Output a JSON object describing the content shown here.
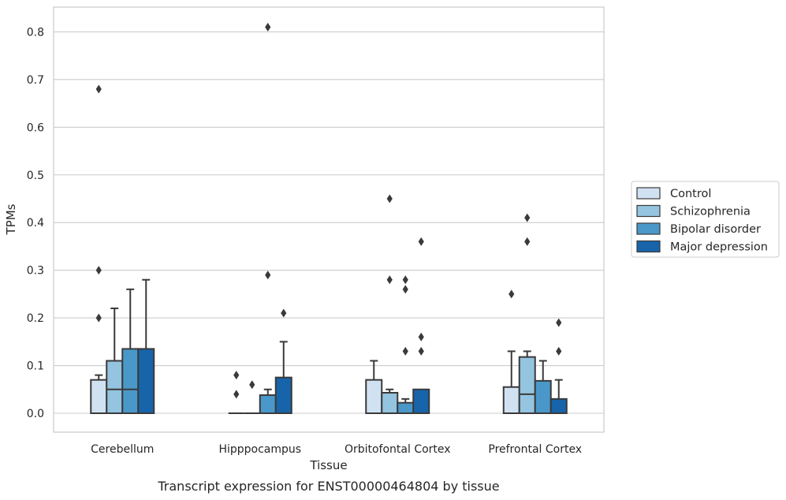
{
  "chart_data": {
    "type": "boxplot",
    "title": "",
    "caption": "Transcript expression for ENST00000464804 by tissue",
    "xlabel": "Tissue",
    "ylabel": "TPMs",
    "ylim": [
      -0.04,
      0.855
    ],
    "yticks": [
      0.0,
      0.1,
      0.2,
      0.3,
      0.4,
      0.5,
      0.6,
      0.7,
      0.8
    ],
    "ytick_labels": [
      "0.0",
      "0.1",
      "0.2",
      "0.3",
      "0.4",
      "0.5",
      "0.6",
      "0.7",
      "0.8"
    ],
    "grid": "horizontal",
    "legend_position": "right",
    "categories": [
      "Cerebellum",
      "Hipppocampus",
      "Orbitofontal Cortex",
      "Prefrontal Cortex"
    ],
    "series": [
      {
        "name": "Control",
        "color": "#d0e1f2",
        "boxes": [
          {
            "q1": 0.0,
            "median": 0.0,
            "q3": 0.07,
            "whislo": 0.0,
            "whishi": 0.08,
            "fliers": [
              0.68,
              0.3,
              0.2
            ]
          },
          {
            "q1": 0.0,
            "median": 0.0,
            "q3": 0.0,
            "whislo": 0.0,
            "whishi": 0.0,
            "fliers": [
              0.08,
              0.04
            ]
          },
          {
            "q1": 0.0,
            "median": 0.0,
            "q3": 0.07,
            "whislo": 0.0,
            "whishi": 0.11,
            "fliers": []
          },
          {
            "q1": 0.0,
            "median": 0.0,
            "q3": 0.055,
            "whislo": 0.0,
            "whishi": 0.13,
            "fliers": [
              0.25
            ]
          }
        ]
      },
      {
        "name": "Schizophrenia",
        "color": "#94c4df",
        "boxes": [
          {
            "q1": 0.0,
            "median": 0.05,
            "q3": 0.11,
            "whislo": 0.0,
            "whishi": 0.22,
            "fliers": []
          },
          {
            "q1": 0.0,
            "median": 0.0,
            "q3": 0.0,
            "whislo": 0.0,
            "whishi": 0.0,
            "fliers": [
              0.06
            ]
          },
          {
            "q1": 0.0,
            "median": 0.0,
            "q3": 0.043,
            "whislo": 0.0,
            "whishi": 0.05,
            "fliers": [
              0.45,
              0.28
            ]
          },
          {
            "q1": 0.0,
            "median": 0.04,
            "q3": 0.118,
            "whislo": 0.0,
            "whishi": 0.13,
            "fliers": [
              0.41,
              0.36
            ]
          }
        ]
      },
      {
        "name": "Bipolar disorder",
        "color": "#4a98c9",
        "boxes": [
          {
            "q1": 0.0,
            "median": 0.05,
            "q3": 0.135,
            "whislo": 0.0,
            "whishi": 0.26,
            "fliers": []
          },
          {
            "q1": 0.0,
            "median": 0.0,
            "q3": 0.038,
            "whislo": 0.0,
            "whishi": 0.05,
            "fliers": [
              0.81,
              0.29
            ]
          },
          {
            "q1": 0.0,
            "median": 0.0,
            "q3": 0.022,
            "whislo": 0.0,
            "whishi": 0.03,
            "fliers": [
              0.28,
              0.26,
              0.13
            ]
          },
          {
            "q1": 0.0,
            "median": 0.0,
            "q3": 0.068,
            "whislo": 0.0,
            "whishi": 0.11,
            "fliers": []
          }
        ]
      },
      {
        "name": "Major depression",
        "color": "#1764ab",
        "boxes": [
          {
            "q1": 0.0,
            "median": 0.0,
            "q3": 0.135,
            "whislo": 0.0,
            "whishi": 0.28,
            "fliers": []
          },
          {
            "q1": 0.0,
            "median": 0.0,
            "q3": 0.075,
            "whislo": 0.0,
            "whishi": 0.15,
            "fliers": [
              0.21
            ]
          },
          {
            "q1": 0.0,
            "median": 0.0,
            "q3": 0.05,
            "whislo": 0.0,
            "whishi": 0.05,
            "fliers": [
              0.36,
              0.16,
              0.13
            ]
          },
          {
            "q1": 0.0,
            "median": 0.0,
            "q3": 0.03,
            "whislo": 0.0,
            "whishi": 0.07,
            "fliers": [
              0.19,
              0.13
            ]
          }
        ]
      }
    ]
  }
}
